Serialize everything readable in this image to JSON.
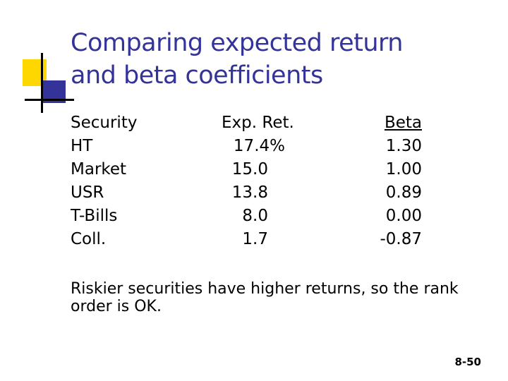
{
  "slide": {
    "title_line1": "Comparing expected return",
    "title_line2": "and beta coefficients",
    "columns": {
      "security_header": "Security",
      "return_header": "Exp. Ret.",
      "beta_header": "Beta"
    },
    "rows": [
      {
        "security": "HT",
        "exp_ret": "17.4%",
        "beta": "1.30"
      },
      {
        "security": "Market",
        "exp_ret": "15.0",
        "beta": "1.00"
      },
      {
        "security": "USR",
        "exp_ret": "13.8",
        "beta": "0.89"
      },
      {
        "security": "T-Bills",
        "exp_ret": "8.0",
        "beta": "0.00"
      },
      {
        "security": "Coll.",
        "exp_ret": "1.7",
        "beta": "-0.87"
      }
    ],
    "note": "Riskier securities have higher returns, so the rank order is OK.",
    "slide_number": "8-50"
  },
  "colors": {
    "title": "#333399",
    "accent_yellow": "#ffd700",
    "accent_blue": "#333399"
  }
}
